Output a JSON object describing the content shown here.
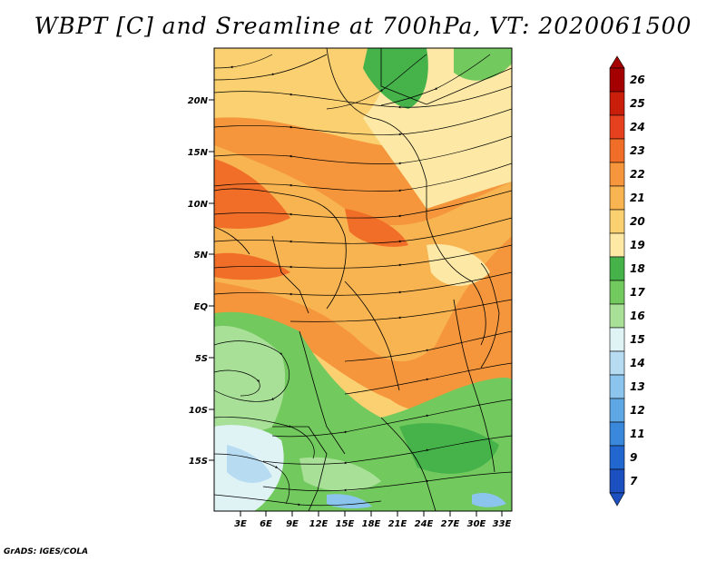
{
  "title": "WBPT [C] and Sreamline at 700hPa, VT: 2020061500",
  "footer": "GrADS: IGES/COLA",
  "map": {
    "lat_range": [
      -20,
      24
    ],
    "lon_range": [
      0,
      34
    ],
    "lat_ticks": [
      "20N",
      "15N",
      "10N",
      "5N",
      "EQ",
      "5S",
      "10S",
      "15S"
    ],
    "lon_ticks": [
      "3E",
      "6E",
      "9E",
      "12E",
      "15E",
      "18E",
      "21E",
      "24E",
      "27E",
      "30E",
      "33E"
    ],
    "field": "wet-bulb potential temperature",
    "overlay": "streamlines"
  },
  "colorbar": {
    "labels": [
      "26",
      "25",
      "24",
      "23",
      "22",
      "21",
      "20",
      "19",
      "18",
      "17",
      "16",
      "15",
      "14",
      "13",
      "12",
      "11",
      "9",
      "7"
    ],
    "colors": [
      "#a50000",
      "#c81e0a",
      "#e6411e",
      "#f06e28",
      "#f5963c",
      "#f8b450",
      "#fbd070",
      "#fde9a5",
      "#45b34a",
      "#72c95d",
      "#a8e098",
      "#dff3f5",
      "#b7dcf2",
      "#8bc4ec",
      "#5ea7e4",
      "#3a88dc",
      "#2266d0",
      "#1c50c0"
    ]
  }
}
